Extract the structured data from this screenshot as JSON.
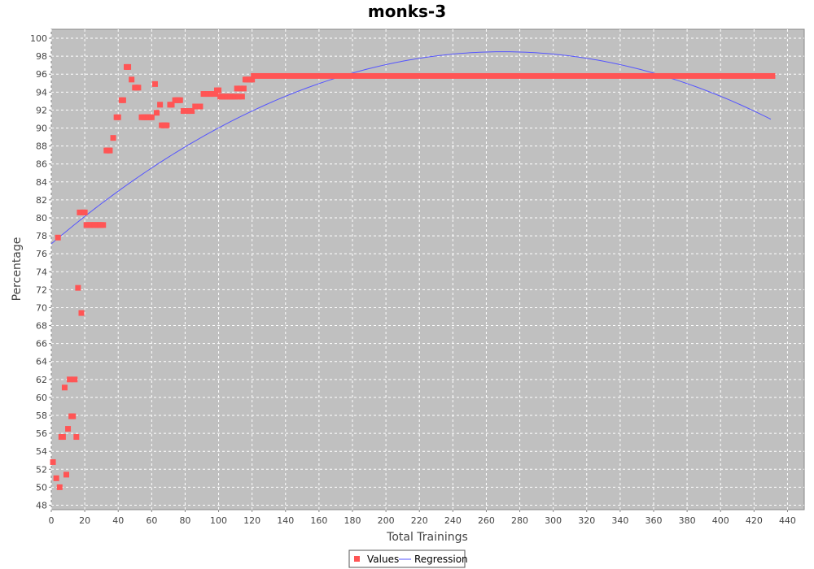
{
  "chart_data": {
    "type": "scatter",
    "title": "monks-3",
    "xlabel": "Total Trainings",
    "ylabel": "Percentage",
    "xlim": [
      0,
      450
    ],
    "ylim": [
      47.5,
      101
    ],
    "x_ticks": [
      0,
      20,
      40,
      60,
      80,
      100,
      120,
      140,
      160,
      180,
      200,
      220,
      240,
      260,
      280,
      300,
      320,
      340,
      360,
      380,
      400,
      420,
      440
    ],
    "y_ticks": [
      48,
      50,
      52,
      54,
      56,
      58,
      60,
      62,
      64,
      66,
      68,
      70,
      72,
      74,
      76,
      78,
      80,
      82,
      84,
      86,
      88,
      90,
      92,
      94,
      96,
      98,
      100
    ],
    "grid": true,
    "legend_position": "bottom",
    "series": [
      {
        "name": "Values",
        "kind": "points",
        "color": "#ff5555",
        "points": [
          [
            1,
            52.8
          ],
          [
            3,
            51.0
          ],
          [
            4,
            77.8
          ],
          [
            5,
            50.0
          ],
          [
            6,
            55.6
          ],
          [
            7,
            55.6
          ],
          [
            8,
            61.1
          ],
          [
            9,
            51.4
          ],
          [
            10,
            56.5
          ],
          [
            11,
            62.0
          ],
          [
            12,
            57.9
          ],
          [
            13,
            57.9
          ],
          [
            14,
            62.0
          ],
          [
            15,
            55.6
          ],
          [
            16,
            72.2
          ],
          [
            17,
            80.6
          ],
          [
            18,
            69.4
          ],
          [
            19,
            80.6
          ],
          [
            20,
            80.6
          ],
          [
            21,
            79.2
          ],
          [
            22,
            79.2
          ],
          [
            23,
            79.2
          ],
          [
            24,
            79.2
          ],
          [
            25,
            79.2
          ],
          [
            26,
            79.2
          ],
          [
            27,
            79.2
          ],
          [
            28,
            79.2
          ],
          [
            29,
            79.2
          ],
          [
            30,
            79.2
          ],
          [
            31,
            79.2
          ],
          [
            33,
            87.5
          ],
          [
            34,
            87.5
          ],
          [
            35,
            87.5
          ],
          [
            37,
            88.9
          ],
          [
            39,
            91.2
          ],
          [
            40,
            91.2
          ],
          [
            42,
            93.1
          ],
          [
            43,
            93.1
          ],
          [
            45,
            96.8
          ],
          [
            46,
            96.8
          ],
          [
            48,
            95.4
          ],
          [
            50,
            94.5
          ],
          [
            51,
            94.5
          ],
          [
            52,
            94.5
          ],
          [
            54,
            91.2
          ],
          [
            55,
            91.2
          ],
          [
            56,
            91.2
          ],
          [
            57,
            91.2
          ],
          [
            58,
            91.2
          ],
          [
            59,
            91.2
          ],
          [
            60,
            91.2
          ],
          [
            62,
            94.9
          ],
          [
            63,
            91.7
          ],
          [
            65,
            92.6
          ],
          [
            66,
            90.3
          ],
          [
            67,
            90.3
          ],
          [
            68,
            90.3
          ],
          [
            69,
            90.3
          ],
          [
            71,
            92.6
          ],
          [
            72,
            92.6
          ],
          [
            74,
            93.1
          ],
          [
            75,
            93.1
          ],
          [
            76,
            93.1
          ],
          [
            77,
            93.1
          ],
          [
            79,
            91.9
          ],
          [
            80,
            91.9
          ],
          [
            81,
            91.9
          ],
          [
            82,
            91.9
          ],
          [
            83,
            91.9
          ],
          [
            84,
            91.9
          ],
          [
            86,
            92.4
          ],
          [
            87,
            92.4
          ],
          [
            88,
            92.4
          ],
          [
            89,
            92.4
          ],
          [
            91,
            93.8
          ],
          [
            92,
            93.8
          ],
          [
            93,
            93.8
          ],
          [
            94,
            93.8
          ],
          [
            95,
            93.8
          ],
          [
            96,
            93.8
          ],
          [
            97,
            93.8
          ],
          [
            98,
            93.8
          ],
          [
            99,
            94.2
          ],
          [
            100,
            94.2
          ],
          [
            101,
            93.5
          ],
          [
            102,
            93.5
          ],
          [
            103,
            93.5
          ],
          [
            104,
            93.5
          ],
          [
            105,
            93.5
          ],
          [
            106,
            93.5
          ],
          [
            107,
            93.5
          ],
          [
            108,
            93.5
          ],
          [
            109,
            93.5
          ],
          [
            110,
            93.5
          ],
          [
            111,
            94.4
          ],
          [
            112,
            93.5
          ],
          [
            113,
            94.4
          ],
          [
            114,
            93.5
          ],
          [
            115,
            94.4
          ],
          [
            116,
            95.4
          ],
          [
            117,
            95.4
          ],
          [
            118,
            95.4
          ],
          [
            119,
            95.4
          ],
          [
            120,
            95.4
          ]
        ],
        "plateau": {
          "y": 95.8,
          "x_start": 121,
          "x_end": 431
        }
      },
      {
        "name": "Regression",
        "kind": "line",
        "color": "#5555ff",
        "x_range": [
          0,
          431
        ],
        "samples": [
          [
            0,
            77.1
          ],
          [
            100,
            89.8
          ],
          [
            200,
            96.3
          ],
          [
            270,
            98.5
          ],
          [
            300,
            98.4
          ],
          [
            400,
            94.3
          ],
          [
            431,
            91.1
          ]
        ]
      }
    ]
  },
  "legend": [
    {
      "label": "Values",
      "color": "#ff5555",
      "shape": "square"
    },
    {
      "label": "Regression",
      "color": "#5555ff",
      "shape": "line"
    }
  ]
}
